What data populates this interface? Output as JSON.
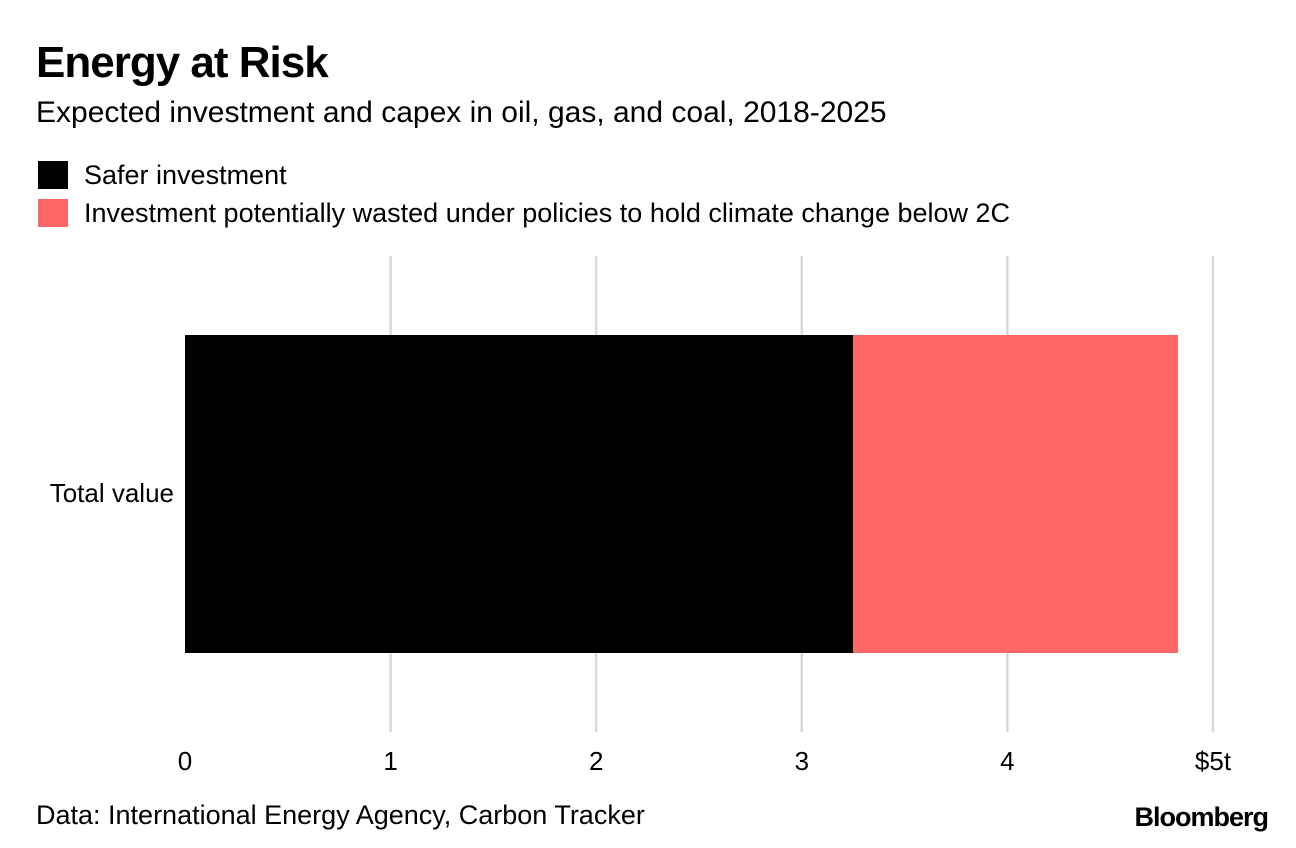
{
  "chart_data": {
    "type": "bar",
    "orientation": "horizontal",
    "stacked": true,
    "title": "Energy at Risk",
    "subtitle": "Expected investment and capex in oil, gas, and coal, 2018-2025",
    "categories": [
      "Total value"
    ],
    "series": [
      {
        "name": "Safer investment",
        "color": "#000000",
        "values": [
          3.25
        ]
      },
      {
        "name": "Investment potentially wasted under policies to hold climate change below 2C",
        "color": "#ff6666",
        "values": [
          1.58
        ]
      }
    ],
    "xlim": [
      0,
      5
    ],
    "xticks": [
      {
        "value": 0,
        "label": "0"
      },
      {
        "value": 1,
        "label": "1"
      },
      {
        "value": 2,
        "label": "2"
      },
      {
        "value": 3,
        "label": "3"
      },
      {
        "value": 4,
        "label": "4"
      },
      {
        "value": 5,
        "label": "$5t"
      }
    ],
    "grid": true,
    "legend_position": "top-left",
    "source": "Data: International Energy Agency, Carbon Tracker"
  },
  "brand": "Bloomberg"
}
